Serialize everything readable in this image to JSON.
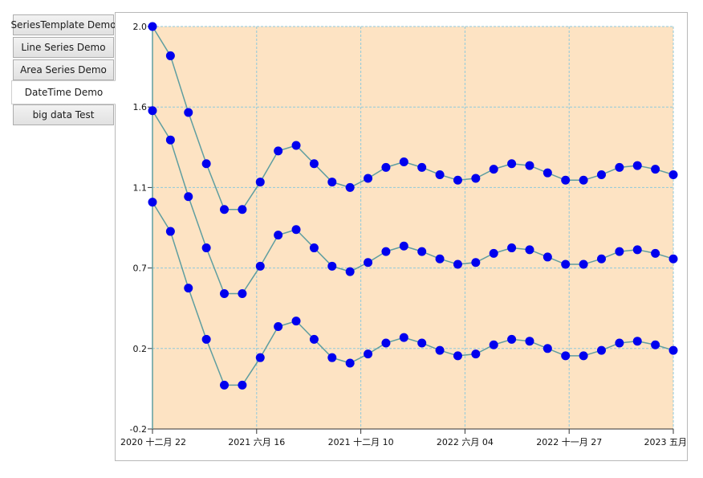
{
  "tabs": [
    {
      "label": "SeriesTemplate Demo",
      "active": false
    },
    {
      "label": "Line Series Demo",
      "active": false
    },
    {
      "label": "Area Series Demo",
      "active": false
    },
    {
      "label": "DateTime Demo",
      "active": true
    },
    {
      "label": "big data Test",
      "active": false
    }
  ],
  "chart_data": {
    "type": "line",
    "title": "",
    "xlabel": "",
    "ylabel": "",
    "grid": true,
    "background_color": "#fde3c3",
    "grid_color": "#8fc9db",
    "line_color": "#5f9ea0",
    "marker_color": "#0000ee",
    "ylim": [
      -0.2,
      2.0
    ],
    "y_ticks": [
      "2.0",
      "1.6",
      "1.1",
      "0.7",
      "0.2",
      "-0.2"
    ],
    "x_ticks": [
      "2020 十二月 22",
      "2021 六月 16",
      "2021 十二月 10",
      "2022 六月 04",
      "2022 十一月 27",
      "2023 五月"
    ],
    "x_index_range": [
      0,
      29
    ],
    "x": [
      0,
      1,
      2,
      3,
      4,
      5,
      6,
      7,
      8,
      9,
      10,
      11,
      12,
      13,
      14,
      15,
      16,
      17,
      18,
      19,
      20,
      21,
      22,
      23,
      24,
      25,
      26,
      27,
      28,
      29
    ],
    "series": [
      {
        "values": [
          2.0,
          1.84,
          1.53,
          1.25,
          1.0,
          1.0,
          1.15,
          1.32,
          1.35,
          1.25,
          1.15,
          1.12,
          1.17,
          1.23,
          1.26,
          1.23,
          1.19,
          1.16,
          1.17,
          1.22,
          1.25,
          1.24,
          1.2,
          1.16,
          1.16,
          1.19,
          1.23,
          1.24,
          1.22,
          1.19
        ]
      },
      {
        "values": [
          1.54,
          1.38,
          1.07,
          0.79,
          0.54,
          0.54,
          0.69,
          0.86,
          0.89,
          0.79,
          0.69,
          0.66,
          0.71,
          0.77,
          0.8,
          0.77,
          0.73,
          0.7,
          0.71,
          0.76,
          0.79,
          0.78,
          0.74,
          0.7,
          0.7,
          0.73,
          0.77,
          0.78,
          0.76,
          0.73
        ]
      },
      {
        "values": [
          1.04,
          0.88,
          0.57,
          0.29,
          0.04,
          0.04,
          0.19,
          0.36,
          0.39,
          0.29,
          0.19,
          0.16,
          0.21,
          0.27,
          0.3,
          0.27,
          0.23,
          0.2,
          0.21,
          0.26,
          0.29,
          0.28,
          0.24,
          0.2,
          0.2,
          0.23,
          0.27,
          0.28,
          0.26,
          0.23
        ]
      }
    ]
  }
}
